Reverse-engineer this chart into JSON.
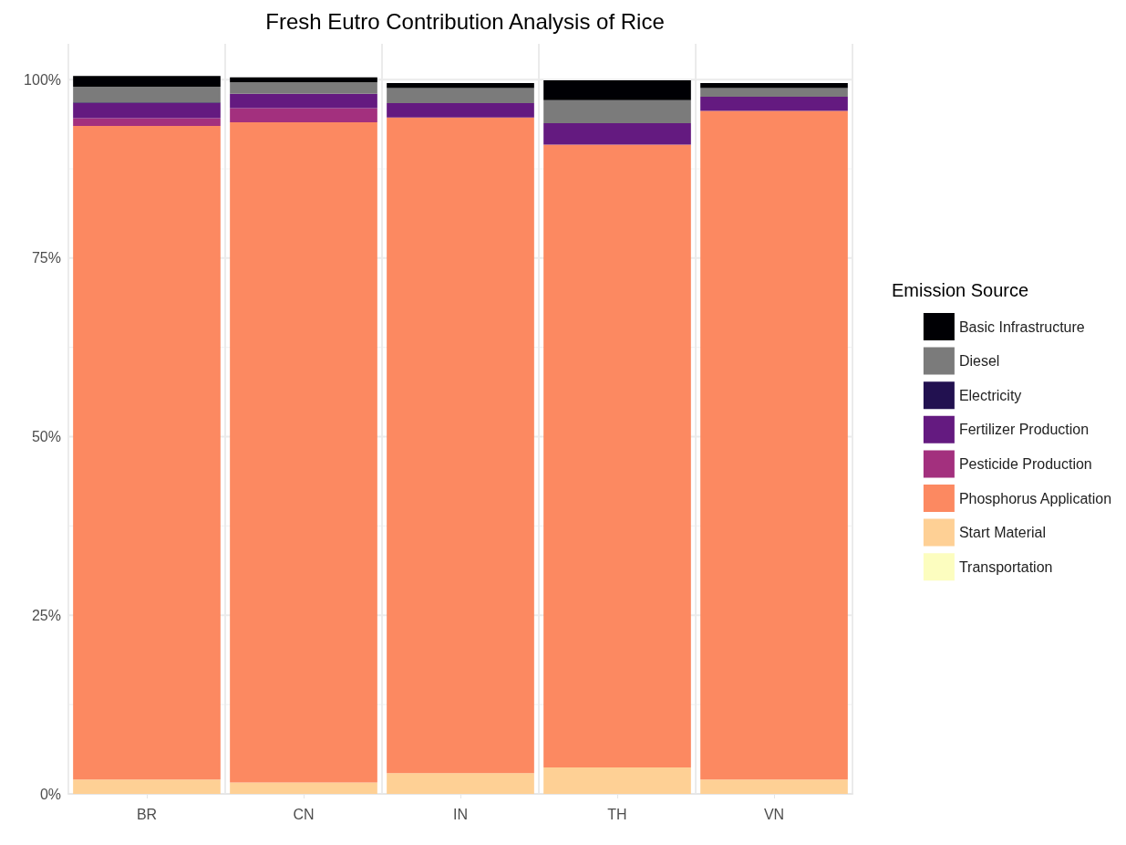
{
  "chart_data": {
    "type": "bar",
    "title": "Fresh Eutro Contribution Analysis of Rice",
    "legend_title": "Emission Source",
    "categories": [
      "BR",
      "CN",
      "IN",
      "TH",
      "VN"
    ],
    "stacked": true,
    "ylim": [
      0,
      105
    ],
    "yticks": [
      {
        "value": 0,
        "label": "0%"
      },
      {
        "value": 12.5,
        "label": null
      },
      {
        "value": 25,
        "label": "25%"
      },
      {
        "value": 37.5,
        "label": null
      },
      {
        "value": 50,
        "label": "50%"
      },
      {
        "value": 62.5,
        "label": null
      },
      {
        "value": 75,
        "label": "75%"
      },
      {
        "value": 87.5,
        "label": null
      },
      {
        "value": 100,
        "label": "100%"
      }
    ],
    "grid": true,
    "legend": "right",
    "series": [
      {
        "name": "Transportation",
        "color": "#fcfdbf",
        "values": [
          0,
          0,
          0,
          0,
          0
        ]
      },
      {
        "name": "Start Material",
        "color": "#fed095",
        "values": [
          2.0,
          1.6,
          2.9,
          3.7,
          2.0
        ]
      },
      {
        "name": "Phosphorus Application",
        "color": "#fc8961",
        "values": [
          91.5,
          92.4,
          91.8,
          87.2,
          93.6
        ]
      },
      {
        "name": "Pesticide Production",
        "color": "#a3307e",
        "values": [
          1.1,
          2.0,
          0,
          0,
          0
        ]
      },
      {
        "name": "Fertilizer Production",
        "color": "#641a80",
        "values": [
          2.1,
          2.0,
          2.0,
          3.0,
          2.0
        ]
      },
      {
        "name": "Electricity",
        "color": "#221150",
        "values": [
          0.1,
          0,
          0,
          0,
          0
        ]
      },
      {
        "name": "Diesel",
        "color": "#7b7b7b",
        "values": [
          2.2,
          1.6,
          2.1,
          3.2,
          1.2
        ]
      },
      {
        "name": "Basic Infrastructure",
        "color": "#000004",
        "values": [
          1.5,
          0.7,
          0.7,
          2.8,
          0.7
        ]
      }
    ]
  }
}
